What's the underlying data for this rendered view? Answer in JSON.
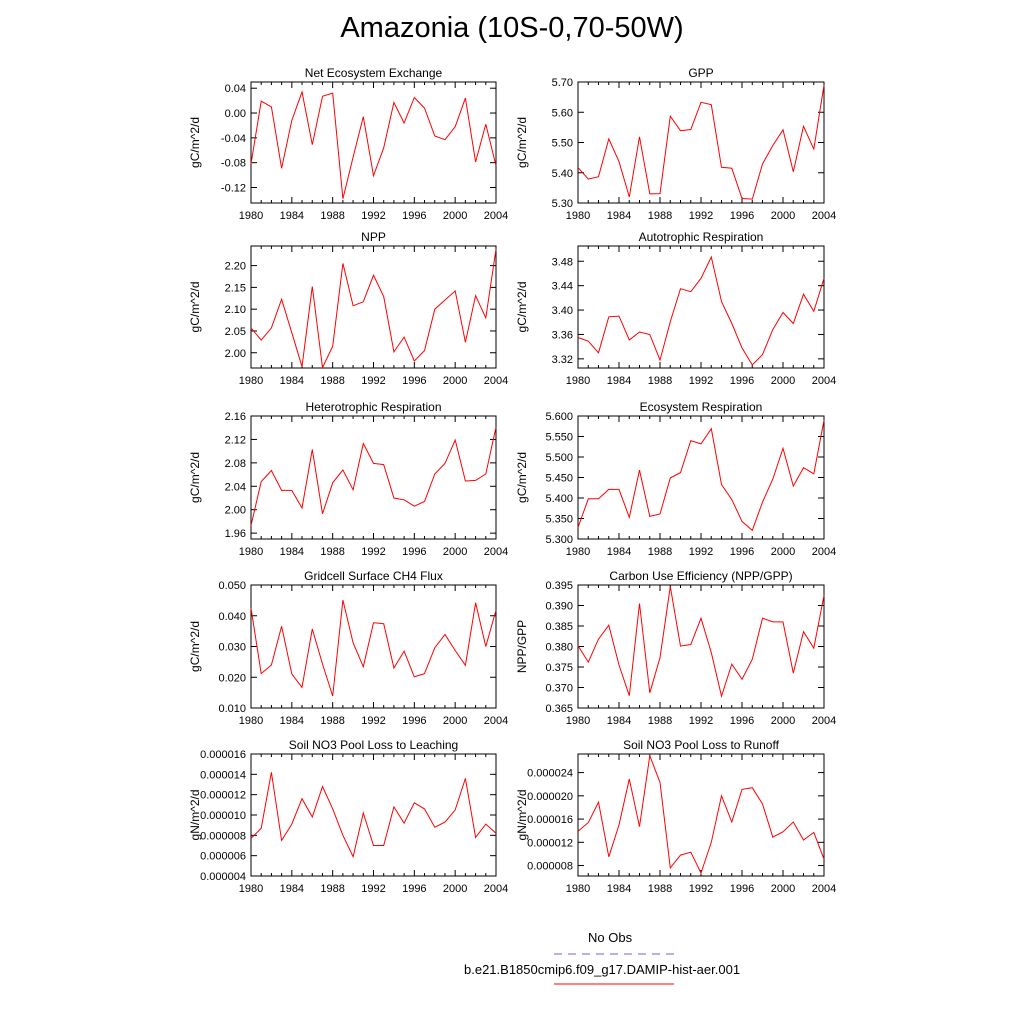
{
  "title": "Amazonia (10S-0,70-50W)",
  "legend": {
    "entries": [
      {
        "label": "No Obs",
        "color": "#6a6ad8",
        "style": "dashed"
      },
      {
        "label": "b.e21.B1850cmip6.f09_g17.DAMIP-hist-aer.001",
        "color": "#ff0000",
        "style": "solid"
      }
    ]
  },
  "chart_data": [
    {
      "type": "line",
      "title": "Net Ecosystem Exchange",
      "ylabel": "gC/m^2/d",
      "xlim": [
        1980,
        2004
      ],
      "ylim": [
        -0.145,
        0.05
      ],
      "xticks": [
        "1980",
        "1984",
        "1988",
        "1992",
        "1996",
        "2000",
        "2004"
      ],
      "yticks": [
        "0.04",
        "0.00",
        "-0.04",
        "-0.08",
        "-0.12"
      ],
      "yticks_values": [
        0.04,
        0.0,
        -0.04,
        -0.08,
        -0.12
      ],
      "x": [
        1980,
        1981,
        1982,
        1983,
        1984,
        1985,
        1986,
        1987,
        1988,
        1989,
        1990,
        1991,
        1992,
        1993,
        1994,
        1995,
        1996,
        1997,
        1998,
        1999,
        2000,
        2001,
        2002,
        2003,
        2004
      ],
      "series": [
        {
          "name": "b.e21.B1850cmip6.f09_g17.DAMIP-hist-aer.001",
          "color": "#ff0000",
          "values": [
            -0.082,
            0.019,
            0.01,
            -0.089,
            -0.012,
            0.034,
            -0.051,
            0.027,
            0.032,
            -0.138,
            -0.071,
            -0.006,
            -0.101,
            -0.056,
            0.017,
            -0.016,
            0.025,
            0.008,
            -0.037,
            -0.043,
            -0.022,
            0.024,
            -0.079,
            -0.018,
            -0.085
          ]
        }
      ]
    },
    {
      "type": "line",
      "title": "GPP",
      "ylabel": "gC/m^2/d",
      "xlim": [
        1980,
        2004
      ],
      "ylim": [
        5.3,
        5.7
      ],
      "xticks": [
        "1980",
        "1984",
        "1988",
        "1992",
        "1996",
        "2000",
        "2004"
      ],
      "yticks": [
        "5.70",
        "5.60",
        "5.50",
        "5.40",
        "5.30"
      ],
      "yticks_values": [
        5.7,
        5.6,
        5.5,
        5.4,
        5.3
      ],
      "x": [
        1980,
        1981,
        1982,
        1983,
        1984,
        1985,
        1986,
        1987,
        1988,
        1989,
        1990,
        1991,
        1992,
        1993,
        1994,
        1995,
        1996,
        1997,
        1998,
        1999,
        2000,
        2001,
        2002,
        2003,
        2004
      ],
      "series": [
        {
          "name": "b.e21.B1850cmip6.f09_g17.DAMIP-hist-aer.001",
          "color": "#ff0000",
          "values": [
            5.417,
            5.379,
            5.387,
            5.512,
            5.437,
            5.32,
            5.519,
            5.33,
            5.331,
            5.587,
            5.539,
            5.543,
            5.633,
            5.625,
            5.418,
            5.415,
            5.315,
            5.313,
            5.429,
            5.49,
            5.542,
            5.403,
            5.554,
            5.478,
            5.69
          ]
        }
      ]
    },
    {
      "type": "line",
      "title": "NPP",
      "ylabel": "gC/m^2/d",
      "xlim": [
        1980,
        2004
      ],
      "ylim": [
        1.965,
        2.245
      ],
      "xticks": [
        "1980",
        "1984",
        "1988",
        "1992",
        "1996",
        "2000",
        "2004"
      ],
      "yticks": [
        "2.20",
        "2.15",
        "2.10",
        "2.05",
        "2.00"
      ],
      "yticks_values": [
        2.2,
        2.15,
        2.1,
        2.05,
        2.0
      ],
      "x": [
        1980,
        1981,
        1982,
        1983,
        1984,
        1985,
        1986,
        1987,
        1988,
        1989,
        1990,
        1991,
        1992,
        1993,
        1994,
        1995,
        1996,
        1997,
        1998,
        1999,
        2000,
        2001,
        2002,
        2003,
        2004
      ],
      "series": [
        {
          "name": "b.e21.B1850cmip6.f09_g17.DAMIP-hist-aer.001",
          "color": "#ff0000",
          "values": [
            2.057,
            2.029,
            2.057,
            2.123,
            2.046,
            1.968,
            2.152,
            1.966,
            2.015,
            2.205,
            2.108,
            2.117,
            2.178,
            2.129,
            2.002,
            2.036,
            1.981,
            2.005,
            2.1,
            2.121,
            2.142,
            2.024,
            2.131,
            2.08,
            2.238
          ]
        }
      ]
    },
    {
      "type": "line",
      "title": "Autotrophic Respiration",
      "ylabel": "gC/m^2/d",
      "xlim": [
        1980,
        2004
      ],
      "ylim": [
        3.305,
        3.505
      ],
      "xticks": [
        "1980",
        "1984",
        "1988",
        "1992",
        "1996",
        "2000",
        "2004"
      ],
      "yticks": [
        "3.48",
        "3.44",
        "3.40",
        "3.36",
        "3.32"
      ],
      "yticks_values": [
        3.48,
        3.44,
        3.4,
        3.36,
        3.32
      ],
      "x": [
        1980,
        1981,
        1982,
        1983,
        1984,
        1985,
        1986,
        1987,
        1988,
        1989,
        1990,
        1991,
        1992,
        1993,
        1994,
        1995,
        1996,
        1997,
        1998,
        1999,
        2000,
        2001,
        2002,
        2003,
        2004
      ],
      "series": [
        {
          "name": "b.e21.B1850cmip6.f09_g17.DAMIP-hist-aer.001",
          "color": "#ff0000",
          "values": [
            3.355,
            3.349,
            3.33,
            3.389,
            3.39,
            3.351,
            3.364,
            3.36,
            3.318,
            3.381,
            3.435,
            3.43,
            3.452,
            3.487,
            3.414,
            3.378,
            3.338,
            3.31,
            3.327,
            3.368,
            3.396,
            3.378,
            3.426,
            3.398,
            3.452
          ]
        }
      ]
    },
    {
      "type": "line",
      "title": "Heterotrophic Respiration",
      "ylabel": "gC/m^2/d",
      "xlim": [
        1980,
        2004
      ],
      "ylim": [
        1.95,
        2.16
      ],
      "xticks": [
        "1980",
        "1984",
        "1988",
        "1992",
        "1996",
        "2000",
        "2004"
      ],
      "yticks": [
        "2.16",
        "2.12",
        "2.08",
        "2.04",
        "2.00",
        "1.96"
      ],
      "yticks_values": [
        2.16,
        2.12,
        2.08,
        2.04,
        2.0,
        1.96
      ],
      "x": [
        1980,
        1981,
        1982,
        1983,
        1984,
        1985,
        1986,
        1987,
        1988,
        1989,
        1990,
        1991,
        1992,
        1993,
        1994,
        1995,
        1996,
        1997,
        1998,
        1999,
        2000,
        2001,
        2002,
        2003,
        2004
      ],
      "series": [
        {
          "name": "b.e21.B1850cmip6.f09_g17.DAMIP-hist-aer.001",
          "color": "#ff0000",
          "values": [
            1.973,
            2.048,
            2.067,
            2.033,
            2.033,
            2.003,
            2.103,
            1.993,
            2.046,
            2.068,
            2.034,
            2.113,
            2.079,
            2.077,
            2.02,
            2.017,
            2.006,
            2.014,
            2.061,
            2.079,
            2.119,
            2.049,
            2.05,
            2.061,
            2.141
          ]
        }
      ]
    },
    {
      "type": "line",
      "title": "Ecosystem Respiration",
      "ylabel": "gC/m^2/d",
      "xlim": [
        1980,
        2004
      ],
      "ylim": [
        5.3,
        5.6
      ],
      "xticks": [
        "1980",
        "1984",
        "1988",
        "1992",
        "1996",
        "2000",
        "2004"
      ],
      "yticks": [
        "5.600",
        "5.550",
        "5.500",
        "5.450",
        "5.400",
        "5.350",
        "5.300"
      ],
      "yticks_values": [
        5.6,
        5.55,
        5.5,
        5.45,
        5.4,
        5.35,
        5.3
      ],
      "x": [
        1980,
        1981,
        1982,
        1983,
        1984,
        1985,
        1986,
        1987,
        1988,
        1989,
        1990,
        1991,
        1992,
        1993,
        1994,
        1995,
        1996,
        1997,
        1998,
        1999,
        2000,
        2001,
        2002,
        2003,
        2004
      ],
      "series": [
        {
          "name": "b.e21.B1850cmip6.f09_g17.DAMIP-hist-aer.001",
          "color": "#ff0000",
          "values": [
            5.328,
            5.398,
            5.398,
            5.421,
            5.421,
            5.353,
            5.468,
            5.355,
            5.361,
            5.449,
            5.462,
            5.54,
            5.532,
            5.569,
            5.433,
            5.396,
            5.343,
            5.321,
            5.39,
            5.446,
            5.521,
            5.429,
            5.474,
            5.459,
            5.59
          ]
        }
      ]
    },
    {
      "type": "line",
      "title": "Gridcell Surface CH4 Flux",
      "ylabel": "gC/m^2/d",
      "xlim": [
        1980,
        2004
      ],
      "ylim": [
        0.01,
        0.05
      ],
      "xticks": [
        "1980",
        "1984",
        "1988",
        "1992",
        "1996",
        "2000",
        "2004"
      ],
      "yticks": [
        "0.050",
        "0.040",
        "0.030",
        "0.020",
        "0.010"
      ],
      "yticks_values": [
        0.05,
        0.04,
        0.03,
        0.02,
        0.01
      ],
      "x": [
        1980,
        1981,
        1982,
        1983,
        1984,
        1985,
        1986,
        1987,
        1988,
        1989,
        1990,
        1991,
        1992,
        1993,
        1994,
        1995,
        1996,
        1997,
        1998,
        1999,
        2000,
        2001,
        2002,
        2003,
        2004
      ],
      "series": [
        {
          "name": "b.e21.B1850cmip6.f09_g17.DAMIP-hist-aer.001",
          "color": "#ff0000",
          "values": [
            0.0425,
            0.0212,
            0.024,
            0.0366,
            0.0211,
            0.0167,
            0.0357,
            0.0243,
            0.0139,
            0.0451,
            0.0312,
            0.0234,
            0.0377,
            0.0374,
            0.023,
            0.0285,
            0.0201,
            0.0212,
            0.0296,
            0.0339,
            0.0287,
            0.0239,
            0.0442,
            0.03,
            0.0418
          ]
        }
      ]
    },
    {
      "type": "line",
      "title": "Carbon Use Efficiency (NPP/GPP)",
      "ylabel": "NPP/GPP",
      "xlim": [
        1980,
        2004
      ],
      "ylim": [
        0.365,
        0.395
      ],
      "xticks": [
        "1980",
        "1984",
        "1988",
        "1992",
        "1996",
        "2000",
        "2004"
      ],
      "yticks": [
        "0.395",
        "0.390",
        "0.385",
        "0.380",
        "0.375",
        "0.370",
        "0.365"
      ],
      "yticks_values": [
        0.395,
        0.39,
        0.385,
        0.38,
        0.375,
        0.37,
        0.365
      ],
      "x": [
        1980,
        1981,
        1982,
        1983,
        1984,
        1985,
        1986,
        1987,
        1988,
        1989,
        1990,
        1991,
        1992,
        1993,
        1994,
        1995,
        1996,
        1997,
        1998,
        1999,
        2000,
        2001,
        2002,
        2003,
        2004
      ],
      "series": [
        {
          "name": "b.e21.B1850cmip6.f09_g17.DAMIP-hist-aer.001",
          "color": "#ff0000",
          "values": [
            0.3802,
            0.3762,
            0.3818,
            0.3852,
            0.3755,
            0.368,
            0.3905,
            0.3687,
            0.3773,
            0.3946,
            0.3801,
            0.3805,
            0.3869,
            0.3785,
            0.3679,
            0.3757,
            0.372,
            0.3769,
            0.3869,
            0.386,
            0.386,
            0.3735,
            0.3836,
            0.3796,
            0.3925
          ]
        }
      ]
    },
    {
      "type": "line",
      "title": "Soil NO3 Pool Loss to Leaching",
      "ylabel": "gN/m^2/d",
      "xlim": [
        1980,
        2004
      ],
      "ylim": [
        4e-06,
        1.6e-05
      ],
      "xticks": [
        "1980",
        "1984",
        "1988",
        "1992",
        "1996",
        "2000",
        "2004"
      ],
      "yticks": [
        "0.000016",
        "0.000014",
        "0.000012",
        "0.000010",
        "0.000008",
        "0.000006",
        "0.000004"
      ],
      "yticks_values": [
        1.6e-05,
        1.4e-05,
        1.2e-05,
        1e-05,
        8e-06,
        6e-06,
        4e-06
      ],
      "x": [
        1980,
        1981,
        1982,
        1983,
        1984,
        1985,
        1986,
        1987,
        1988,
        1989,
        1990,
        1991,
        1992,
        1993,
        1994,
        1995,
        1996,
        1997,
        1998,
        1999,
        2000,
        2001,
        2002,
        2003,
        2004
      ],
      "series": [
        {
          "name": "b.e21.B1850cmip6.f09_g17.DAMIP-hist-aer.001",
          "color": "#ff0000",
          "values": [
            7.7e-06,
            8.7e-06,
            1.42e-05,
            7.5e-06,
            9.1e-06,
            1.16e-05,
            9.8e-06,
            1.28e-05,
            1.06e-05,
            8e-06,
            5.9e-06,
            1.02e-05,
            7e-06,
            7e-06,
            1.08e-05,
            9.2e-06,
            1.12e-05,
            1.06e-05,
            8.8e-06,
            9.3e-06,
            1.05e-05,
            1.36e-05,
            7.8e-06,
            9.1e-06,
            8.2e-06
          ]
        }
      ]
    },
    {
      "type": "line",
      "title": "Soil NO3 Pool Loss to Runoff",
      "ylabel": "gN/m^2/d",
      "xlim": [
        1980,
        2004
      ],
      "ylim": [
        6.2e-06,
        2.72e-05
      ],
      "xticks": [
        "1980",
        "1984",
        "1988",
        "1992",
        "1996",
        "2000",
        "2004"
      ],
      "yticks": [
        "0.000024",
        "0.000020",
        "0.000016",
        "0.000012",
        "0.000008"
      ],
      "yticks_values": [
        2.4e-05,
        2e-05,
        1.6e-05,
        1.2e-05,
        8e-06
      ],
      "x": [
        1980,
        1981,
        1982,
        1983,
        1984,
        1985,
        1986,
        1987,
        1988,
        1989,
        1990,
        1991,
        1992,
        1993,
        1994,
        1995,
        1996,
        1997,
        1998,
        1999,
        2000,
        2001,
        2002,
        2003,
        2004
      ],
      "series": [
        {
          "name": "b.e21.B1850cmip6.f09_g17.DAMIP-hist-aer.001",
          "color": "#ff0000",
          "values": [
            1.39e-05,
            1.54e-05,
            1.89e-05,
            9.5e-06,
            1.5e-05,
            2.29e-05,
            1.47e-05,
            2.69e-05,
            2.23e-05,
            7.6e-06,
            9.8e-06,
            1.03e-05,
            6.7e-06,
            1.2e-05,
            2e-05,
            1.55e-05,
            2.11e-05,
            2.14e-05,
            1.86e-05,
            1.29e-05,
            1.38e-05,
            1.55e-05,
            1.24e-05,
            1.37e-05,
            9.1e-06
          ]
        }
      ]
    }
  ]
}
